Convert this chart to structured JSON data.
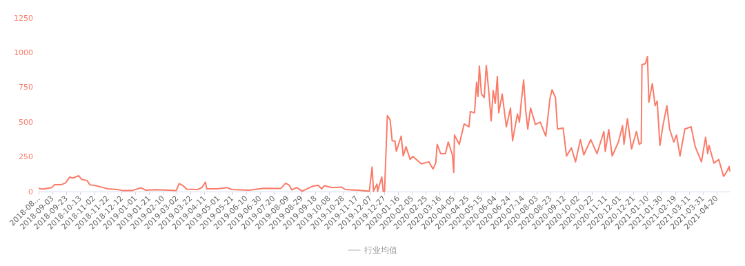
{
  "chart_data": {
    "type": "line",
    "xlim": [
      "2018-08-14",
      "2021-05-09"
    ],
    "xticks": [
      {
        "value": "2018-08-14",
        "label": "2018-08..."
      },
      "2018-09-03",
      "2018-09-23",
      "2018-10-13",
      "2018-11-02",
      "2018-11-22",
      "2018-12-12",
      "2019-01-01",
      "2019-01-21",
      "2019-02-10",
      "2019-03-02",
      "2019-03-22",
      "2019-04-11",
      "2019-05-01",
      "2019-05-21",
      "2019-06-10",
      "2019-06-30",
      "2019-07-20",
      "2019-08-09",
      "2019-08-29",
      "2019-09-18",
      "2019-10-08",
      "2019-10-28",
      "2019-11-17",
      "2019-12-07",
      "2019-12-27",
      "2020-01-16",
      "2020-02-05",
      "2020-02-25",
      "2020-03-16",
      "2020-04-05",
      "2020-04-25",
      "2020-05-15",
      "2020-06-04",
      "2020-06-24",
      "2020-07-14",
      "2020-08-03",
      "2020-08-23",
      "2020-09-12",
      "2020-10-02",
      "2020-10-22",
      "2020-11-11",
      "2020-12-01",
      "2020-12-21",
      "2021-01-10",
      "2021-01-30",
      "2021-02-19",
      "2021-03-11",
      "2021-03-31",
      "2021-04-20"
    ],
    "ylim": [
      0,
      1250
    ],
    "yticks": [
      0,
      250,
      500,
      750,
      1000,
      1250
    ],
    "grid": false,
    "legend": "bottom",
    "marker": "none",
    "line_style": "solid",
    "series": [
      {
        "color": "#fa7b68",
        "x": [
          "2018-08-14",
          "2018-08-19",
          "2018-09-02",
          "2018-09-06",
          "2018-09-16",
          "2018-09-22",
          "2018-09-28",
          "2018-10-02",
          "2018-10-11",
          "2018-10-15",
          "2018-10-23",
          "2018-10-27",
          "2018-11-05",
          "2018-11-15",
          "2018-11-22",
          "2018-12-06",
          "2018-12-13",
          "2018-12-27",
          "2019-01-09",
          "2019-01-16",
          "2019-01-31",
          "2019-03-01",
          "2019-03-05",
          "2019-03-11",
          "2019-03-16",
          "2019-04-01",
          "2019-04-07",
          "2019-04-12",
          "2019-04-14",
          "2019-04-29",
          "2019-05-13",
          "2019-05-20",
          "2019-06-14",
          "2019-07-05",
          "2019-07-30",
          "2019-08-06",
          "2019-08-11",
          "2019-08-15",
          "2019-08-22",
          "2019-08-30",
          "2019-09-13",
          "2019-09-22",
          "2019-09-27",
          "2019-10-01",
          "2019-10-12",
          "2019-10-26",
          "2019-10-31",
          "2019-11-19",
          "2019-12-05",
          "2019-12-09",
          "2019-12-11",
          "2019-12-16",
          "2019-12-17",
          "2019-12-23",
          "2019-12-25",
          "2019-12-27",
          "2019-12-31",
          "2020-01-04",
          "2020-01-07",
          "2020-01-11",
          "2020-01-13",
          "2020-01-20",
          "2020-01-23",
          "2020-01-27",
          "2020-02-02",
          "2020-02-06",
          "2020-02-18",
          "2020-02-29",
          "2020-03-06",
          "2020-03-10",
          "2020-03-12",
          "2020-03-17",
          "2020-03-24",
          "2020-03-28",
          "2020-04-03",
          "2020-04-05",
          "2020-04-06",
          "2020-04-13",
          "2020-04-20",
          "2020-04-27",
          "2020-04-29",
          "2020-05-05",
          "2020-05-08",
          "2020-05-10",
          "2020-05-12",
          "2020-05-15",
          "2020-05-19",
          "2020-05-22",
          "2020-05-26",
          "2020-05-29",
          "2020-06-01",
          "2020-06-04",
          "2020-06-07",
          "2020-06-09",
          "2020-06-14",
          "2020-06-20",
          "2020-06-26",
          "2020-06-29",
          "2020-07-06",
          "2020-07-09",
          "2020-07-11",
          "2020-07-15",
          "2020-07-18",
          "2020-07-21",
          "2020-07-25",
          "2020-08-01",
          "2020-08-08",
          "2020-08-16",
          "2020-08-22",
          "2020-08-25",
          "2020-08-30",
          "2020-09-02",
          "2020-09-10",
          "2020-09-15",
          "2020-09-22",
          "2020-09-28",
          "2020-10-05",
          "2020-10-10",
          "2020-10-20",
          "2020-10-29",
          "2020-11-08",
          "2020-11-10",
          "2020-11-15",
          "2020-11-20",
          "2020-11-29",
          "2020-12-05",
          "2020-12-07",
          "2020-12-12",
          "2020-12-18",
          "2020-12-25",
          "2020-12-29",
          "2021-01-01",
          "2021-01-02",
          "2021-01-07",
          "2021-01-10",
          "2021-01-12",
          "2021-01-17",
          "2021-01-21",
          "2021-01-24",
          "2021-01-28",
          "2021-02-01",
          "2021-02-07",
          "2021-02-11",
          "2021-02-17",
          "2021-02-21",
          "2021-02-26",
          "2021-03-05",
          "2021-03-14",
          "2021-03-20",
          "2021-03-29",
          "2021-04-04",
          "2021-04-07",
          "2021-04-09",
          "2021-04-16",
          "2021-04-23",
          "2021-04-30",
          "2021-05-04",
          "2021-05-08",
          "2021-05-09"
        ],
        "values": [
          24,
          17,
          29,
          50,
          50,
          63,
          105,
          97,
          114,
          88,
          80,
          49,
          42,
          29,
          20,
          15,
          8,
          7,
          27,
          10,
          14,
          8,
          58,
          41,
          17,
          15,
          29,
          68,
          20,
          20,
          29,
          15,
          10,
          24,
          22,
          60,
          46,
          12,
          29,
          3,
          37,
          46,
          20,
          42,
          29,
          32,
          15,
          10,
          3,
          177,
          3,
          54,
          3,
          105,
          3,
          3,
          547,
          517,
          365,
          365,
          290,
          399,
          256,
          323,
          231,
          253,
          200,
          214,
          163,
          205,
          340,
          273,
          273,
          357,
          264,
          138,
          407,
          340,
          487,
          466,
          576,
          567,
          786,
          685,
          904,
          702,
          677,
          908,
          702,
          509,
          727,
          635,
          829,
          567,
          702,
          466,
          601,
          365,
          559,
          500,
          618,
          803,
          584,
          450,
          601,
          483,
          500,
          399,
          668,
          733,
          677,
          450,
          458,
          256,
          315,
          214,
          374,
          264,
          374,
          273,
          433,
          288,
          446,
          256,
          357,
          475,
          340,
          525,
          306,
          433,
          340,
          349,
          913,
          921,
          972,
          643,
          778,
          618,
          652,
          332,
          466,
          618,
          450,
          357,
          407,
          256,
          450,
          466,
          323,
          214,
          391,
          273,
          332,
          205,
          231,
          109,
          138,
          180,
          146
        ]
      },
      {
        "name": "行业均值",
        "color": "#cccccc"
      }
    ]
  }
}
